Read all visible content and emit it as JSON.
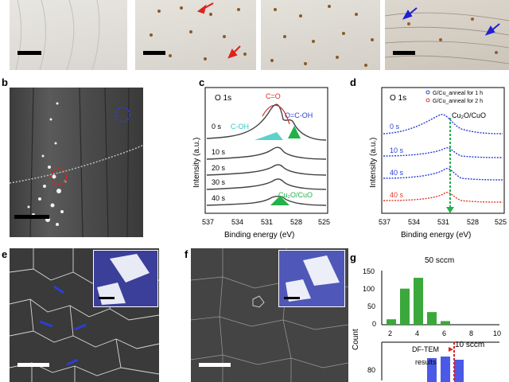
{
  "labels": {
    "b": "b",
    "c": "c",
    "d": "d",
    "e": "e",
    "f": "f",
    "g": "g"
  },
  "panel_c": {
    "title": "O 1s",
    "ylabel": "Intensity (a.u.)",
    "xlabel": "Binding energy (eV)",
    "xticks": [
      "537",
      "534",
      "531",
      "528",
      "525"
    ],
    "peak_labels": {
      "co": "C=O",
      "oco": "O=C-OH",
      "coh": "C-OH",
      "cu": "Cu₂O/CuO"
    },
    "times": [
      "0 s",
      "10 s",
      "20 s",
      "30 s",
      "40 s"
    ]
  },
  "panel_d": {
    "title": "O 1s",
    "ylabel": "Intensity (a.u.)",
    "xlabel": "Binding energy (eV)",
    "xticks": [
      "537",
      "534",
      "531",
      "528",
      "525"
    ],
    "legend": [
      "G/Cu_anneal for 1 h",
      "G/Cu_anneal for 2 h"
    ],
    "marker": "Cu₂O/CuO",
    "times": [
      "0 s",
      "10 s",
      "40 s",
      "40 s"
    ],
    "colors": {
      "blue": "#2a3fd6",
      "red": "#e03a2a",
      "green": "#22b24a"
    }
  },
  "chart_data": {
    "type": "bar",
    "title": "",
    "xlabel": "",
    "ylabel": "Count",
    "series": [
      {
        "name": "50 sccm",
        "categories": [
          2,
          3,
          4,
          5,
          6
        ],
        "values": [
          15,
          100,
          130,
          35,
          10
        ]
      },
      {
        "name": "10 sccm",
        "categories": [
          5,
          6,
          7
        ],
        "values": [
          75,
          80,
          70
        ]
      }
    ],
    "xticks": [
      "2",
      "4",
      "6",
      "8",
      "10"
    ],
    "yticks_top": [
      "150",
      "100",
      "50",
      "0"
    ],
    "yticks_bottom": [
      "80"
    ],
    "ylim_top": [
      0,
      150
    ],
    "annotation": {
      "text1": "DF-TEM",
      "text2": "results",
      "x": 5.5
    }
  }
}
